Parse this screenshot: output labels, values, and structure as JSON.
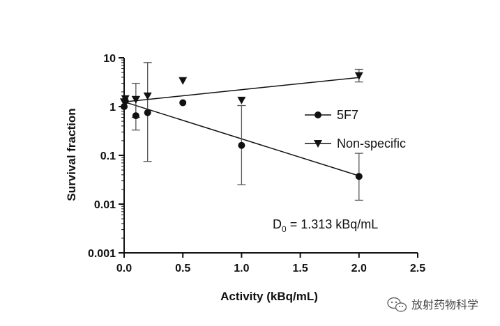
{
  "chart_data": {
    "type": "scatter",
    "title": "",
    "xlabel": "Activity (kBq/mL)",
    "ylabel": "Survival fraction",
    "xlim": [
      0,
      2.5
    ],
    "ylim": [
      0.001,
      10
    ],
    "yscale": "log",
    "xticks": [
      "0.0",
      "0.5",
      "1.0",
      "1.5",
      "2.0",
      "2.5"
    ],
    "yticks": [
      "0.001",
      "0.01",
      "0.1",
      "1",
      "10"
    ],
    "grid": false,
    "legend_position": "right",
    "series": [
      {
        "name": "5F7",
        "marker": "circle",
        "color": "#111111",
        "points": [
          {
            "x": 0,
            "y": 1.0
          },
          {
            "x": 0.01,
            "y": 1.3
          },
          {
            "x": 0.1,
            "y": 0.65,
            "err_low": 0.33,
            "err_high": 1.6
          },
          {
            "x": 0.2,
            "y": 0.75,
            "err_low": 0.075,
            "err_high": 8.0
          },
          {
            "x": 0.5,
            "y": 1.2
          },
          {
            "x": 1.0,
            "y": 0.16,
            "err_low": 0.025,
            "err_high": 1.05
          },
          {
            "x": 2.0,
            "y": 0.037,
            "err_low": 0.012,
            "err_high": 0.11
          }
        ],
        "fit": {
          "x": [
            0,
            2.0
          ],
          "y": [
            1.25,
            0.038
          ]
        }
      },
      {
        "name": "Non-specific",
        "marker": "triangle-down",
        "color": "#111111",
        "points": [
          {
            "x": 0,
            "y": 1.25
          },
          {
            "x": 0.01,
            "y": 1.45
          },
          {
            "x": 0.1,
            "y": 1.4,
            "err_low": 0.6,
            "err_high": 3.0
          },
          {
            "x": 0.2,
            "y": 1.65
          },
          {
            "x": 0.5,
            "y": 3.4
          },
          {
            "x": 1.0,
            "y": 1.35
          },
          {
            "x": 2.0,
            "y": 4.3,
            "err_low": 3.2,
            "err_high": 5.8
          }
        ],
        "fit": {
          "x": [
            0,
            2.0
          ],
          "y": [
            1.25,
            3.95
          ]
        }
      }
    ],
    "annotation": {
      "main": "D",
      "sub": "0",
      "rest": " = 1.313 kBq/mL"
    }
  },
  "watermark": {
    "icon": "wechat-icon",
    "text": "放射药物科学"
  }
}
